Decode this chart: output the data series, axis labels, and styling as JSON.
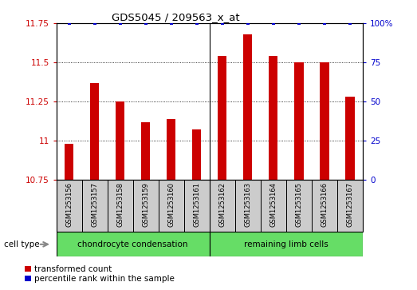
{
  "title": "GDS5045 / 209563_x_at",
  "samples": [
    "GSM1253156",
    "GSM1253157",
    "GSM1253158",
    "GSM1253159",
    "GSM1253160",
    "GSM1253161",
    "GSM1253162",
    "GSM1253163",
    "GSM1253164",
    "GSM1253165",
    "GSM1253166",
    "GSM1253167"
  ],
  "transformed_counts": [
    10.98,
    11.37,
    11.25,
    11.12,
    11.14,
    11.07,
    11.54,
    11.68,
    11.54,
    11.5,
    11.5,
    11.28
  ],
  "percentile_ranks": [
    100,
    100,
    100,
    100,
    100,
    100,
    100,
    100,
    100,
    100,
    100,
    100
  ],
  "bar_color": "#cc0000",
  "dot_color": "#0000cc",
  "ylim_left": [
    10.75,
    11.75
  ],
  "ylim_right": [
    0,
    100
  ],
  "yticks_left": [
    10.75,
    11.0,
    11.25,
    11.5,
    11.75
  ],
  "yticks_right": [
    0,
    25,
    50,
    75,
    100
  ],
  "ytick_labels_left": [
    "10.75",
    "11",
    "11.25",
    "11.5",
    "11.75"
  ],
  "ytick_labels_right": [
    "0",
    "25",
    "50",
    "75",
    "100%"
  ],
  "group1_label": "chondrocyte condensation",
  "group2_label": "remaining limb cells",
  "group1_color": "#66dd66",
  "group2_color": "#66dd66",
  "cell_type_label": "cell type",
  "legend_bar_label": "transformed count",
  "legend_dot_label": "percentile rank within the sample",
  "background_color": "#cccccc",
  "bar_width": 0.35,
  "bar_bottom": 10.75,
  "n_group1": 6,
  "n_group2": 6
}
